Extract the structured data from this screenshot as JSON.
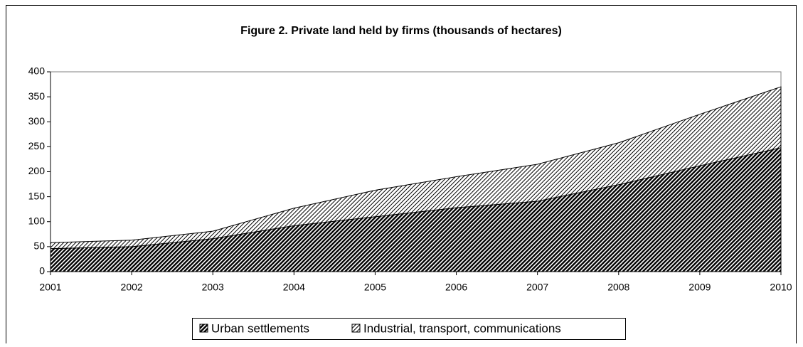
{
  "chart_data": {
    "type": "stacked-area",
    "title": "Figure 2. Private land held by firms (thousands of hectares)",
    "categories": [
      "2001",
      "2002",
      "2003",
      "2004",
      "2005",
      "2006",
      "2007",
      "2008",
      "2009",
      "2010"
    ],
    "series": [
      {
        "name": "Urban settlements",
        "values": [
          46,
          50,
          66,
          92,
          110,
          128,
          141,
          174,
          212,
          248
        ]
      },
      {
        "name": "Industrial, transport, communications",
        "values": [
          12,
          13,
          15,
          35,
          53,
          62,
          74,
          84,
          103,
          122
        ]
      }
    ],
    "ylim": [
      0,
      400
    ],
    "yticks": [
      0,
      50,
      100,
      150,
      200,
      250,
      300,
      350,
      400
    ],
    "legend": "bottom"
  }
}
